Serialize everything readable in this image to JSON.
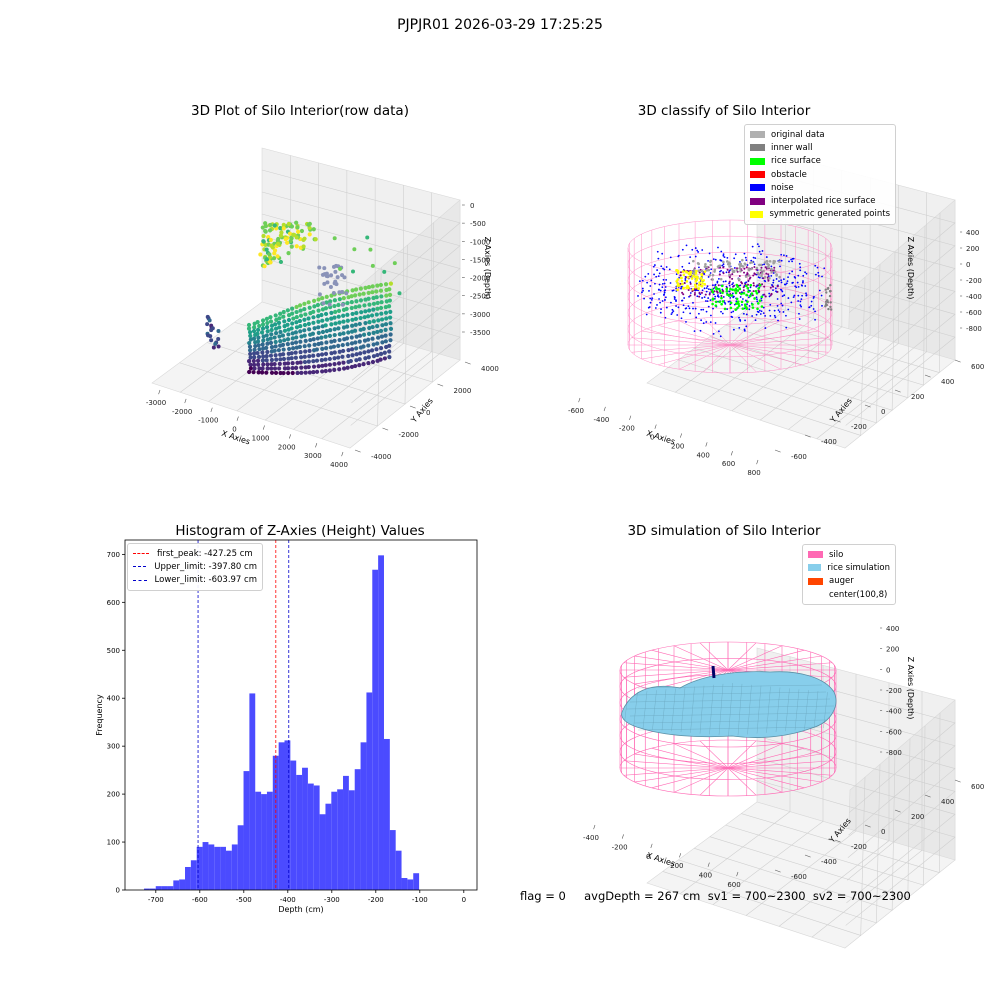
{
  "suptitle": "PJPJR01 2026-03-29 17:25:25",
  "footer": "flag = 0     avgDepth = 267 cm  sv1 = 700~2300  sv2 = 700~2300",
  "colors": {
    "silo": "#ff69b4",
    "rice_simulation": "#87ceeb",
    "auger": "#ff4500",
    "histogram": "#4b4bff",
    "first_peak": "#ff0000",
    "limits": "#0000cc"
  },
  "panels": {
    "raw": {
      "title": "3D Plot of Silo Interior(row data)",
      "xlabel": "X Axies",
      "ylabel": "Y Axies",
      "zlabel": "Z Axies (Depth)",
      "xticks": [
        "-3000",
        "-2000",
        "-1000",
        "0",
        "1000",
        "2000",
        "3000",
        "4000"
      ],
      "yticks": [
        "-4000",
        "-2000",
        "0",
        "2000",
        "4000"
      ],
      "zticks": [
        "0",
        "-500",
        "-1000",
        "-1500",
        "-2000",
        "-2500",
        "-3000",
        "-3500"
      ]
    },
    "classify": {
      "title": "3D classify of Silo Interior",
      "xlabel": "X Axies",
      "ylabel": "Y Axies",
      "zlabel": "Z Axies (Depth)",
      "xticks": [
        "-600",
        "-400",
        "-200",
        "0",
        "200",
        "400",
        "600",
        "800"
      ],
      "yticks": [
        "-600",
        "-400",
        "-200",
        "0",
        "200",
        "400",
        "600"
      ],
      "zticks": [
        "400",
        "200",
        "0",
        "-200",
        "-400",
        "-600",
        "-800"
      ],
      "legend": [
        {
          "label": "original data",
          "color": "#b0b0b0"
        },
        {
          "label": "inner wall",
          "color": "#808080"
        },
        {
          "label": "rice surface",
          "color": "#00ff00"
        },
        {
          "label": "obstacle",
          "color": "#ff0000"
        },
        {
          "label": "noise",
          "color": "#0000ff"
        },
        {
          "label": "interpolated rice surface",
          "color": "#800080"
        },
        {
          "label": "symmetric generated points",
          "color": "#ffff00"
        }
      ]
    },
    "histogram": {
      "title": "Histogram of Z-Axies (Height) Values",
      "xlabel": "Depth (cm)",
      "ylabel": "Frequency",
      "legend": [
        {
          "label": "first_peak: -427.25 cm",
          "color": "#ff0000"
        },
        {
          "label": "Upper_limit: -397.80 cm",
          "color": "#0000cc"
        },
        {
          "label": "Lower_limit: -603.97 cm",
          "color": "#0000cc"
        }
      ]
    },
    "simulation": {
      "title": "3D simulation of Silo Interior",
      "xlabel": "X Axies",
      "ylabel": "Y Axies",
      "zlabel": "Z Axies (Depth)",
      "xticks": [
        "-400",
        "-200",
        "0",
        "200",
        "400",
        "600"
      ],
      "yticks": [
        "-600",
        "-400",
        "-200",
        "0",
        "200",
        "400",
        "600"
      ],
      "zticks": [
        "400",
        "200",
        "0",
        "-200",
        "-400",
        "-600",
        "-800"
      ],
      "legend": [
        {
          "label": "silo",
          "color": "#ff69b4"
        },
        {
          "label": "rice simulation",
          "color": "#87ceeb"
        },
        {
          "label": "auger",
          "color": "#ff4500"
        },
        {
          "label": "center(100,8)",
          "color": ""
        }
      ]
    }
  },
  "chart_data": [
    {
      "type": "scatter",
      "title": "3D Plot of Silo Interior(row data)",
      "xlabel": "X Axies",
      "ylabel": "Y Axies",
      "zlabel": "Z Axies (Depth)",
      "xlim": [
        -3500,
        4500
      ],
      "ylim": [
        -4500,
        4500
      ],
      "zlim": [
        -3800,
        200
      ]
    },
    {
      "type": "scatter",
      "title": "3D classify of Silo Interior",
      "xlabel": "X Axies",
      "ylabel": "Y Axies",
      "zlabel": "Z Axies (Depth)",
      "xlim": [
        -600,
        800
      ],
      "ylim": [
        -700,
        700
      ],
      "zlim": [
        -900,
        400
      ],
      "series": [
        {
          "name": "original data"
        },
        {
          "name": "inner wall"
        },
        {
          "name": "rice surface"
        },
        {
          "name": "obstacle"
        },
        {
          "name": "noise"
        },
        {
          "name": "interpolated rice surface"
        },
        {
          "name": "symmetric generated points"
        }
      ]
    },
    {
      "type": "bar",
      "title": "Histogram of Z-Axies (Height) Values",
      "xlabel": "Depth (cm)",
      "ylabel": "Frequency",
      "xlim": [
        -770,
        30
      ],
      "ylim": [
        0,
        730
      ],
      "xticks": [
        -700,
        -600,
        -500,
        -400,
        -300,
        -200,
        -100,
        0
      ],
      "yticks": [
        0,
        100,
        200,
        300,
        400,
        500,
        600,
        700
      ],
      "bin_start": -740,
      "bin_width": 13.3,
      "values": [
        0,
        3,
        3,
        8,
        8,
        8,
        20,
        22,
        48,
        62,
        90,
        100,
        95,
        90,
        90,
        82,
        95,
        135,
        248,
        410,
        205,
        200,
        205,
        280,
        308,
        312,
        270,
        240,
        255,
        222,
        218,
        158,
        180,
        205,
        210,
        238,
        208,
        252,
        308,
        412,
        668,
        698,
        315,
        125,
        82,
        25,
        22,
        35
      ],
      "vlines": [
        {
          "name": "first_peak",
          "x": -427.25
        },
        {
          "name": "Upper_limit",
          "x": -397.8
        },
        {
          "name": "Lower_limit",
          "x": -603.97
        }
      ]
    },
    {
      "type": "area",
      "title": "3D simulation of Silo Interior",
      "xlabel": "X Axies",
      "ylabel": "Y Axies",
      "zlabel": "Z Axies (Depth)",
      "xlim": [
        -500,
        700
      ],
      "ylim": [
        -700,
        700
      ],
      "zlim": [
        -900,
        450
      ],
      "series": [
        {
          "name": "silo"
        },
        {
          "name": "rice simulation"
        },
        {
          "name": "auger"
        }
      ]
    }
  ]
}
